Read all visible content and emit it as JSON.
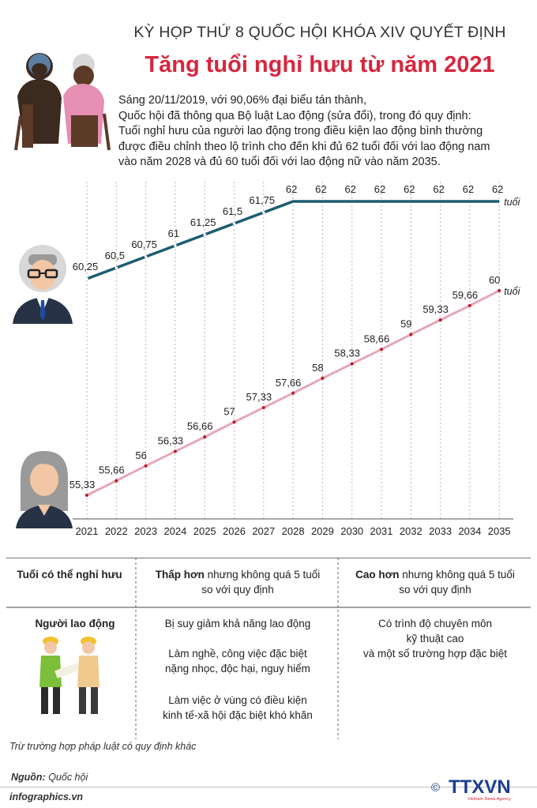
{
  "header": {
    "kicker": "KỲ HỌP THỨ 8 QUỐC HỘI KHÓA XIV QUYẾT ĐỊNH",
    "headline": "Tăng tuổi nghỉ hưu từ năm 2021"
  },
  "intro": {
    "lines": [
      "Sáng 20/11/2019, với 90,06% đại biểu tán thành,",
      "Quốc hội đã thông qua Bộ luật Lao động (sửa đổi), trong đó quy định:",
      "Tuổi nghỉ hưu của người lao động trong điều kiện lao động bình thường",
      "được điều chỉnh theo lộ trình cho đến khi đủ 62 tuổi đối với lao động nam",
      "vào năm 2028 và đủ 60 tuổi đối với lao động nữ vào năm 2035."
    ]
  },
  "chart_data": {
    "type": "line",
    "x": [
      "2021",
      "2022",
      "2023",
      "2024",
      "2025",
      "2026",
      "2027",
      "2028",
      "2029",
      "2030",
      "2031",
      "2032",
      "2033",
      "2034",
      "2035"
    ],
    "series": [
      {
        "values": [
          60.25,
          60.5,
          60.75,
          61,
          61.25,
          61.5,
          61.75,
          62,
          62,
          62,
          62,
          62,
          62,
          62,
          62
        ],
        "labels": [
          "60,25",
          "60,5",
          "60,75",
          "61",
          "61,25",
          "61,5",
          "61,75",
          "62",
          "62",
          "62",
          "62",
          "62",
          "62",
          "62",
          "62"
        ],
        "unit": "tuổi",
        "color": "#1d5c72"
      },
      {
        "values": [
          55.33,
          55.66,
          56,
          56.33,
          56.66,
          57,
          57.33,
          57.66,
          58,
          58.33,
          58.66,
          59,
          59.33,
          59.66,
          60
        ],
        "labels": [
          "55,33",
          "55,66",
          "56",
          "56,33",
          "56,66",
          "57",
          "57,33",
          "57,66",
          "58",
          "58,33",
          "58,66",
          "59",
          "59,33",
          "59,66",
          "60"
        ],
        "unit": "tuổi",
        "color": "#e8a6b6"
      }
    ],
    "grid": "vertical dashed",
    "legend": "none"
  },
  "table": {
    "col1_header": "Tuổi có thể nghỉ hưu",
    "col2_header_bold": "Thấp hơn",
    "col2_header_rest": " nhưng không quá 5 tuổi",
    "col2_header_line2": "so với quy định",
    "col3_header_bold": "Cao hơn",
    "col3_header_rest": " nhưng không quá 5 tuổi",
    "col3_header_line2": "so với quy định",
    "row_label": "Người lao động",
    "col2_items": [
      [
        "Bị suy giảm khả năng lao động"
      ],
      [
        "Làm nghề, công việc đặc biệt",
        "nặng nhọc, độc hại, nguy hiểm"
      ],
      [
        "Làm việc ở vùng có điều kiện",
        "kinh tế-xã hội đặc biệt khó khăn"
      ]
    ],
    "col3_lines": [
      "Có trình độ chuyên môn",
      "kỹ thuật cao",
      "và một số trường hợp đặc biệt"
    ]
  },
  "footer": {
    "note": "Trừ trường hợp pháp luật có quy định khác",
    "source_label": "Nguồn:",
    "source_value": " Quốc hội",
    "site": "infographics.vn",
    "logo_text": "TTXVN",
    "logo_sub": "Vietnam News Agency",
    "copyright": "©"
  },
  "colors": {
    "headline": "#d7263d",
    "male_line": "#1d5c72",
    "female_line": "#e8a6b6",
    "dots": "#c0182d"
  }
}
